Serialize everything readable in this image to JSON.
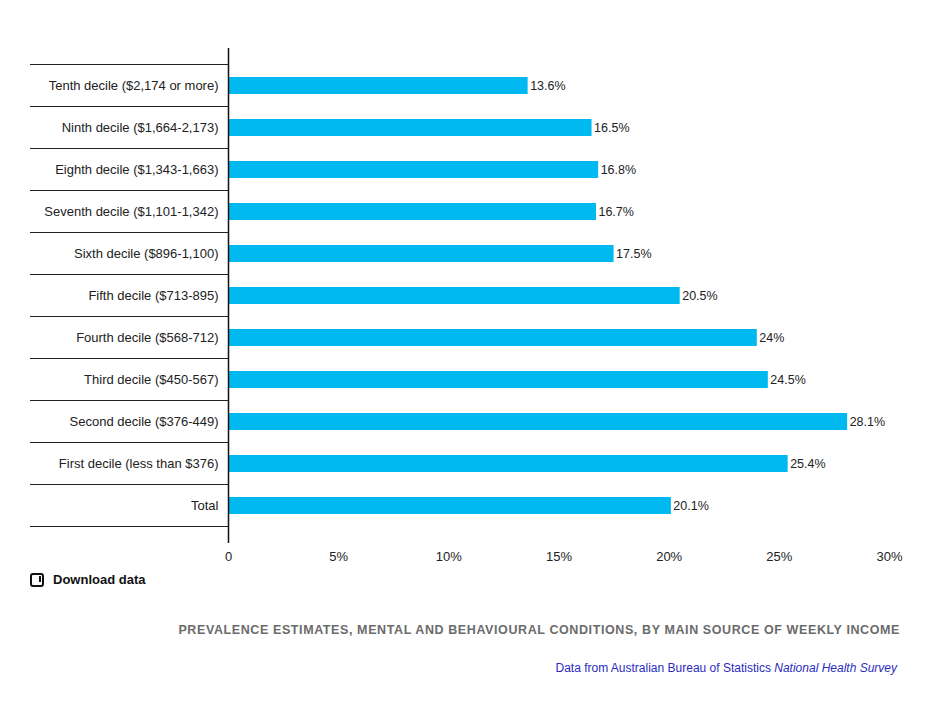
{
  "chart_data": {
    "type": "bar",
    "orientation": "horizontal",
    "title": "PREVALENCE ESTIMATES, MENTAL AND BEHAVIOURAL CONDITIONS, BY MAIN SOURCE OF WEEKLY INCOME",
    "source": "Data from Australian Bureau of Statistics",
    "source_title": "National Health Survey",
    "download": "Download data",
    "categories": [
      "Tenth decile ($2,174 or more)",
      "Ninth decile ($1,664-2,173)",
      "Eighth decile ($1,343-1,663)",
      "Seventh decile ($1,101-1,342)",
      "Sixth decile ($896-1,100)",
      "Fifth decile ($713-895)",
      "Fourth decile ($568-712)",
      "Third decile ($450-567)",
      "Second decile ($376-449)",
      "First decile (less than $376)",
      "Total"
    ],
    "values": [
      13.6,
      16.5,
      16.8,
      16.7,
      17.5,
      20.5,
      24,
      24.5,
      28.1,
      25.4,
      20.1
    ],
    "value_labels": [
      "13.6%",
      "16.5%",
      "16.8%",
      "16.7%",
      "17.5%",
      "20.5%",
      "24%",
      "24.5%",
      "28.1%",
      "25.4%",
      "20.1%"
    ],
    "data_labels": true,
    "color": "#00b9f1",
    "xlim": [
      0,
      30
    ],
    "xticks": [
      0,
      {
        "value": 5,
        "label": "5%"
      },
      {
        "value": 10,
        "label": "10%"
      },
      {
        "value": 15,
        "label": "15%"
      },
      {
        "value": 20,
        "label": "20%"
      },
      {
        "value": 25,
        "label": "25%"
      },
      {
        "value": 30,
        "label": "30%"
      }
    ],
    "grid": true
  }
}
